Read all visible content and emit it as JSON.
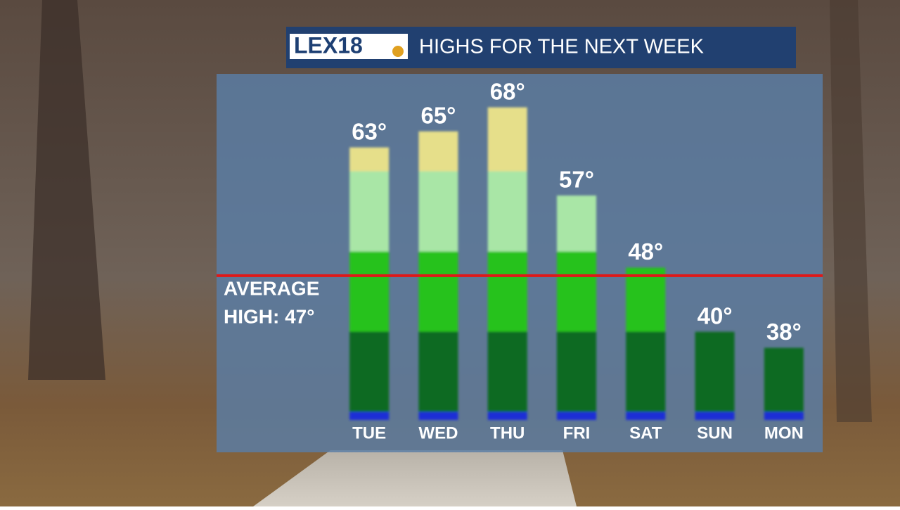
{
  "logo": "LEX18",
  "chart_data": {
    "type": "bar",
    "title": "HIGHS FOR THE NEXT WEEK",
    "categories": [
      "TUE",
      "WED",
      "THU",
      "FRI",
      "SAT",
      "SUN",
      "MON"
    ],
    "values": [
      63,
      65,
      68,
      57,
      48,
      40,
      38
    ],
    "value_labels": [
      "63°",
      "65°",
      "68°",
      "57°",
      "48°",
      "40°",
      "38°"
    ],
    "ylim": [
      29,
      72
    ],
    "color_bands": [
      {
        "upto": 30,
        "color": "#1f2fd6"
      },
      {
        "upto": 40,
        "color": "#0b6b22"
      },
      {
        "upto": 50,
        "color": "#27c21e"
      },
      {
        "upto": 60,
        "color": "#a9e6a6"
      },
      {
        "upto": 70,
        "color": "#e6df8a"
      }
    ],
    "reference_line": {
      "value": 47,
      "label": [
        "AVERAGE",
        "HIGH: 47°"
      ],
      "color": "#e01818"
    }
  }
}
